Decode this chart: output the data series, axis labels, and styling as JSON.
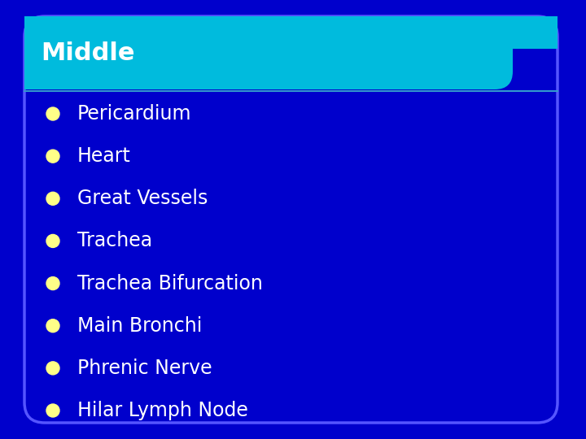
{
  "title": "Middle",
  "background_color": "#0000CC",
  "slide_bg": "#1a1aff",
  "header_color": "#00BBDD",
  "header_text_color": "#FFFFFF",
  "bullet_color": "#FFFF88",
  "bullet_text_color": "#FFFFFF",
  "border_color": "#5555FF",
  "content_bg": "#0000CC",
  "items": [
    "Pericardium",
    "Heart",
    "Great Vessels",
    "Trachea",
    "Trachea Bifurcation",
    "Main Bronchi",
    "Phrenic Nerve",
    "Hilar Lymph Node"
  ],
  "title_fontsize": 22,
  "item_fontsize": 17,
  "fig_width": 7.2,
  "fig_height": 5.4,
  "dpi": 100
}
